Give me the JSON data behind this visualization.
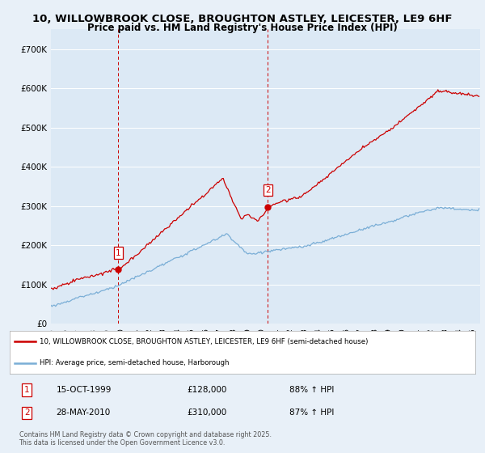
{
  "title1": "10, WILLOWBROOK CLOSE, BROUGHTON ASTLEY, LEICESTER, LE9 6HF",
  "title2": "Price paid vs. HM Land Registry's House Price Index (HPI)",
  "ylim": [
    0,
    750000
  ],
  "yticks": [
    0,
    100000,
    200000,
    300000,
    400000,
    500000,
    600000,
    700000
  ],
  "ytick_labels": [
    "£0",
    "£100K",
    "£200K",
    "£300K",
    "£400K",
    "£500K",
    "£600K",
    "£700K"
  ],
  "background_color": "#e8f0f8",
  "plot_bg": "#dce9f5",
  "grid_color": "#c0cfe0",
  "red_color": "#cc0000",
  "blue_color": "#7aaed6",
  "legend_label_red": "10, WILLOWBROOK CLOSE, BROUGHTON ASTLEY, LEICESTER, LE9 6HF (semi-detached house)",
  "legend_label_blue": "HPI: Average price, semi-detached house, Harborough",
  "purchase1_year": 1999.79,
  "purchase1_price": 128000,
  "purchase2_year": 2010.41,
  "purchase2_price": 310000,
  "table_data": [
    [
      "1",
      "15-OCT-1999",
      "£128,000",
      "88% ↑ HPI"
    ],
    [
      "2",
      "28-MAY-2010",
      "£310,000",
      "87% ↑ HPI"
    ]
  ],
  "footnote": "Contains HM Land Registry data © Crown copyright and database right 2025.\nThis data is licensed under the Open Government Licence v3.0."
}
